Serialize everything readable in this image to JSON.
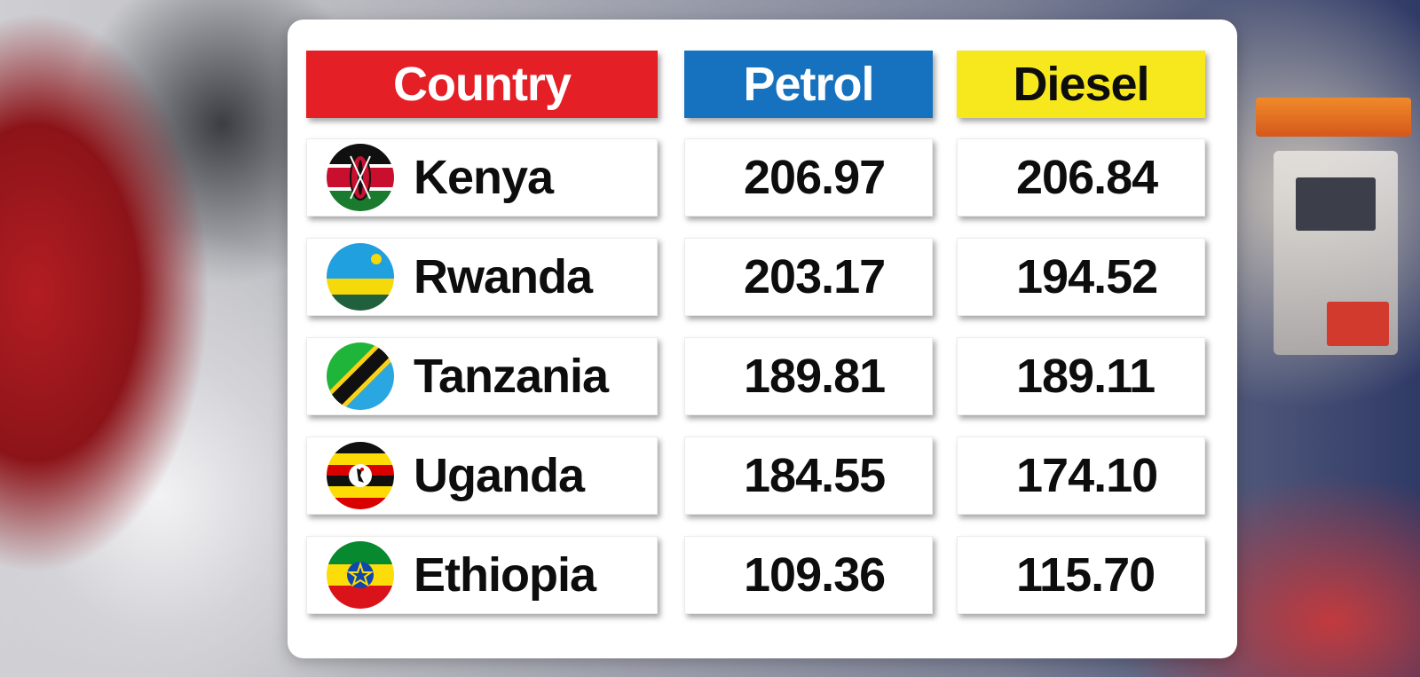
{
  "table": {
    "headers": {
      "country": "Country",
      "petrol": "Petrol",
      "diesel": "Diesel"
    },
    "rows": [
      {
        "country": "Kenya",
        "flag": "kenya-flag-icon",
        "petrol": "206.97",
        "diesel": "206.84"
      },
      {
        "country": "Rwanda",
        "flag": "rwanda-flag-icon",
        "petrol": "203.17",
        "diesel": "194.52"
      },
      {
        "country": "Tanzania",
        "flag": "tanzania-flag-icon",
        "petrol": "189.81",
        "diesel": "189.11"
      },
      {
        "country": "Uganda",
        "flag": "uganda-flag-icon",
        "petrol": "184.55",
        "diesel": "174.10"
      },
      {
        "country": "Ethiopia",
        "flag": "ethiopia-flag-icon",
        "petrol": "109.36",
        "diesel": "115.70"
      }
    ],
    "colors": {
      "country_header": "#e41f26",
      "petrol_header": "#1672bf",
      "diesel_header": "#f7e81d"
    }
  },
  "chart_data": {
    "type": "table",
    "columns": [
      "Country",
      "Petrol",
      "Diesel"
    ],
    "categories": [
      "Kenya",
      "Rwanda",
      "Tanzania",
      "Uganda",
      "Ethiopia"
    ],
    "series": [
      {
        "name": "Petrol",
        "values": [
          206.97,
          203.17,
          189.81,
          184.55,
          109.36
        ]
      },
      {
        "name": "Diesel",
        "values": [
          206.84,
          194.52,
          189.11,
          174.1,
          115.7
        ]
      }
    ]
  }
}
